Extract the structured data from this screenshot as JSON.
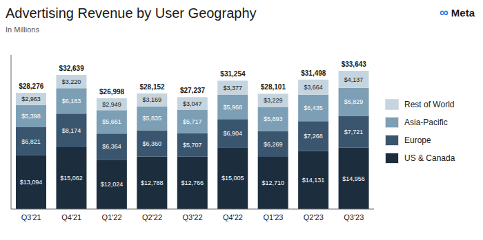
{
  "chart_data": {
    "type": "bar",
    "title": "Advertising Revenue by User Geography",
    "subtitle": "In Millions",
    "annotations": [
      {
        "text": "∞",
        "color": "#1877f2"
      },
      {
        "text": "Meta",
        "color": "#1c1c1c"
      }
    ],
    "categories": [
      "Q3'21",
      "Q4'21",
      "Q1'22",
      "Q2'22",
      "Q3'22",
      "Q4'22",
      "Q1'23",
      "Q2'23",
      "Q3'23"
    ],
    "series": [
      {
        "name": "US & Canada",
        "color": "#1c2e3e",
        "values": [
          13094,
          15062,
          12024,
          12788,
          12766,
          15005,
          12710,
          14131,
          14956
        ],
        "value_labels": [
          "$13,094",
          "$15,062",
          "$12,024",
          "$12,788",
          "$12,766",
          "$15,005",
          "$12,710",
          "$14,131",
          "$14,956"
        ]
      },
      {
        "name": "Europe",
        "color": "#3a556e",
        "values": [
          6821,
          8174,
          6364,
          6360,
          5707,
          6904,
          6269,
          7268,
          7721
        ],
        "value_labels": [
          "$6,821",
          "$8,174",
          "$6,364",
          "$6,360",
          "$5,707",
          "$6,904",
          "$6,269",
          "$7,268",
          "$7,721"
        ]
      },
      {
        "name": "Asia-Pacific",
        "color": "#7d9fb5",
        "values": [
          5398,
          6183,
          5661,
          5835,
          5717,
          5968,
          5893,
          6435,
          6829
        ],
        "value_labels": [
          "$5,398",
          "$6,183",
          "$5,661",
          "$5,835",
          "$5,717",
          "$5,968",
          "$5,893",
          "$6,435",
          "$6,829"
        ]
      },
      {
        "name": "Rest of World",
        "color": "#c5d5df",
        "values": [
          2963,
          3220,
          2949,
          3169,
          3047,
          3377,
          3229,
          3664,
          4137
        ],
        "value_labels": [
          "$2,963",
          "$3,220",
          "$2,949",
          "$3,169",
          "$3,047",
          "$3,377",
          "$3,229",
          "$3,664",
          "$4,137"
        ]
      }
    ],
    "totals": [
      28276,
      32639,
      26998,
      28152,
      27237,
      31254,
      28101,
      31498,
      33643
    ],
    "total_labels": [
      "$28,276",
      "$32,639",
      "$26,998",
      "$28,152",
      "$27,237",
      "$31,254",
      "$28,101",
      "$31,498",
      "$33,643"
    ],
    "stacked": true,
    "data_labels": true,
    "ylim": [
      0,
      37500
    ],
    "grid": false,
    "legend": "right",
    "tick_labels": "x"
  }
}
